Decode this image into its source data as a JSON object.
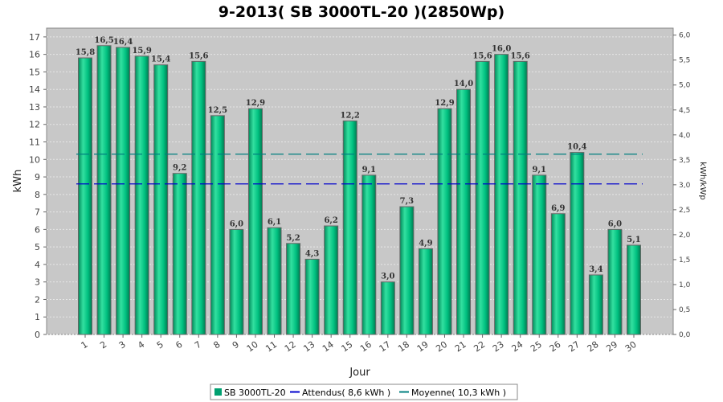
{
  "chart_data": {
    "type": "bar",
    "title": "9-2013( SB 3000TL-20 )(2850Wp)",
    "xlabel": "Jour",
    "ylabel": "kWh",
    "y2label": "kWh/kWp",
    "ylim": [
      0,
      17.5
    ],
    "y2lim": [
      0,
      6.14
    ],
    "yticks": [
      "0",
      "1",
      "2",
      "3",
      "4",
      "5",
      "6",
      "7",
      "8",
      "9",
      "10",
      "11",
      "12",
      "13",
      "14",
      "15",
      "16",
      "17"
    ],
    "y2ticks": [
      "0,0",
      "0,5",
      "1,0",
      "1,5",
      "2,0",
      "2,5",
      "3,0",
      "3,5",
      "4,0",
      "4,5",
      "5,0",
      "5,5",
      "6,0"
    ],
    "grid": true,
    "legend_position": "bottom",
    "categories": [
      "1",
      "2",
      "3",
      "4",
      "5",
      "6",
      "7",
      "8",
      "9",
      "10",
      "11",
      "12",
      "13",
      "14",
      "15",
      "16",
      "17",
      "18",
      "19",
      "20",
      "21",
      "22",
      "23",
      "24",
      "25",
      "26",
      "27",
      "28",
      "29",
      "30"
    ],
    "series": [
      {
        "name": "SB 3000TL-20",
        "color": "#00c080",
        "values": [
          15.8,
          16.5,
          16.4,
          15.9,
          15.4,
          9.2,
          15.6,
          12.5,
          6.0,
          12.9,
          6.1,
          5.2,
          4.3,
          6.2,
          12.2,
          9.1,
          3.0,
          7.3,
          4.9,
          12.9,
          14.0,
          15.6,
          16.0,
          15.6,
          9.1,
          6.9,
          10.4,
          3.4,
          6.0,
          5.1
        ],
        "labels": [
          "15,8",
          "16,5",
          "16,4",
          "15,9",
          "15,4",
          "9,2",
          "15,6",
          "12,5",
          "6,0",
          "12,9",
          "6,1",
          "5,2",
          "4,3",
          "6,2",
          "12,2",
          "9,1",
          "3,0",
          "7,3",
          "4,9",
          "12,9",
          "14,0",
          "15,6",
          "16,0",
          "15,6",
          "9,1",
          "6,9",
          "10,4",
          "3,4",
          "6,0",
          "5,1"
        ]
      }
    ],
    "reference_lines": [
      {
        "name": "Attendus( 8,6 kWh )",
        "value": 8.6,
        "color": "#0000cc"
      },
      {
        "name": "Moyenne( 10,3 kWh )",
        "value": 10.3,
        "color": "#007f7f"
      }
    ]
  }
}
